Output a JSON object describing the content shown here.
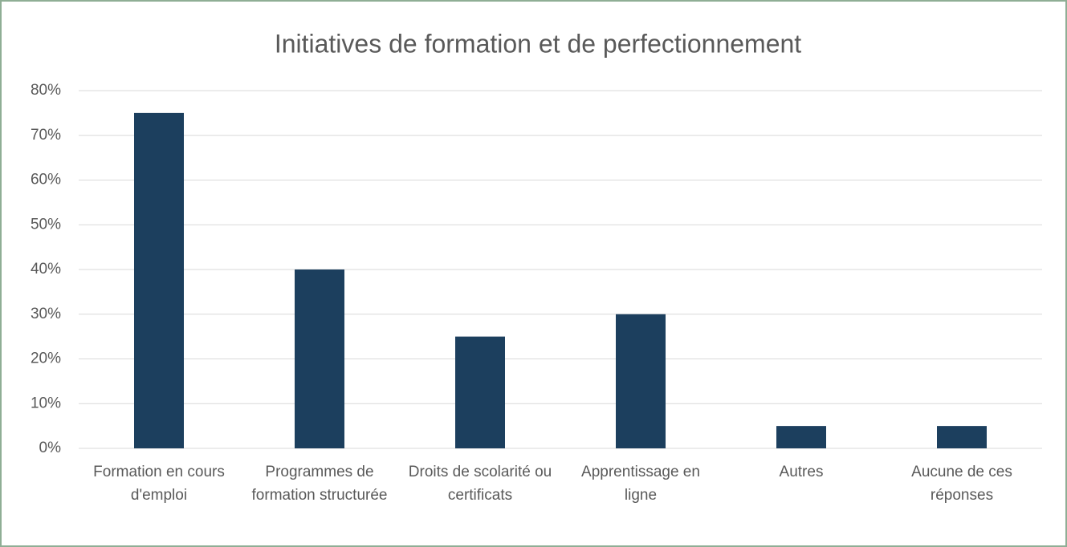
{
  "chart_data": {
    "type": "bar",
    "title": "Initiatives de formation et de perfectionnement",
    "categories": [
      "Formation en cours d'emploi",
      "Programmes de formation structurée",
      "Droits de scolarité ou certificats",
      "Apprentissage en ligne",
      "Autres",
      "Aucune de ces réponses"
    ],
    "values": [
      75,
      40,
      25,
      30,
      5,
      5
    ],
    "color": "#1c3f5e",
    "ylim": [
      0,
      80
    ],
    "yticks": [
      {
        "value": 0,
        "label": "0%"
      },
      {
        "value": 10,
        "label": "10%"
      },
      {
        "value": 20,
        "label": "20%"
      },
      {
        "value": 30,
        "label": "30%"
      },
      {
        "value": 40,
        "label": "40%"
      },
      {
        "value": 50,
        "label": "50%"
      },
      {
        "value": 60,
        "label": "60%"
      },
      {
        "value": 70,
        "label": "70%"
      },
      {
        "value": 80,
        "label": "80%"
      }
    ],
    "grid": true
  }
}
